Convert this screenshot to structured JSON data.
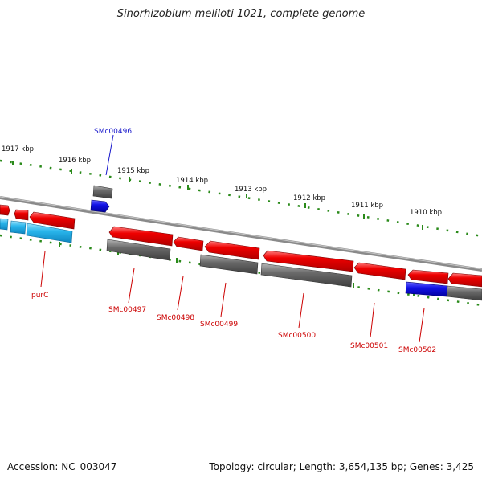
{
  "title": "Sinorhizobium meliloti 1021, complete genome",
  "footer": {
    "accession": "Accession: NC_003047",
    "summary": "Topology: circular; Length: 3,654,135 bp; Genes: 3,425"
  },
  "colors": {
    "background": "#ffffff",
    "backbone": "#8a8a8a",
    "ruler_tick": "#2a8a1a",
    "gene_red": "#e60000",
    "gene_gray": "#6e6e6e",
    "gene_blue": "#1010e0",
    "gene_cyan": "#27b4ea",
    "label_red": "#cc0000",
    "label_blue": "#1a1acc"
  },
  "ruler": {
    "unit": "kbp",
    "ticks": [
      {
        "label": "1917 kbp"
      },
      {
        "label": "1916 kbp"
      },
      {
        "label": "1915 kbp"
      },
      {
        "label": "1914 kbp"
      },
      {
        "label": "1913 kbp"
      },
      {
        "label": "1912 kbp"
      },
      {
        "label": "1911 kbp"
      },
      {
        "label": "1910 kbp"
      }
    ]
  },
  "gene_labels": [
    {
      "text": "SMc00496",
      "color": "blue"
    },
    {
      "text": "purC",
      "color": "red"
    },
    {
      "text": "SMc00497",
      "color": "red"
    },
    {
      "text": "SMc00498",
      "color": "red"
    },
    {
      "text": "SMc00499",
      "color": "red"
    },
    {
      "text": "SMc00500",
      "color": "red"
    },
    {
      "text": "SMc00501",
      "color": "red"
    },
    {
      "text": "SMc00502",
      "color": "red"
    }
  ]
}
